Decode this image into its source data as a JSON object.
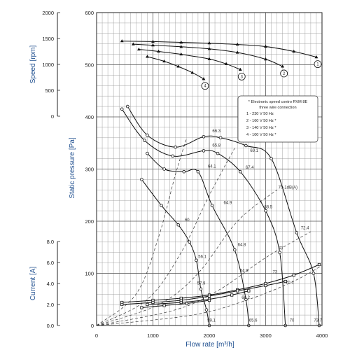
{
  "chart_data": {
    "type": "line",
    "axes": {
      "x": {
        "label": "Flow rate [m³/h]",
        "range": [
          0,
          4000
        ],
        "ticks": [
          0,
          1000,
          2000,
          3000,
          4000
        ]
      },
      "pressure": {
        "label": "Static pressure [Pa]",
        "range": [
          0,
          600
        ],
        "ticks": [
          0,
          100,
          200,
          300,
          400,
          500,
          600
        ]
      },
      "speed": {
        "label": "Speed [rpm]",
        "range": [
          0,
          2000
        ],
        "ticks": [
          0,
          500,
          1000,
          1500,
          2000
        ]
      },
      "current": {
        "label": "Current [A]",
        "range": [
          0,
          8
        ],
        "ticks": [
          "0.0",
          "2.0",
          "4.0",
          "6.0",
          "8.0"
        ]
      }
    },
    "grid": true,
    "legend": {
      "placement": "right",
      "title_lines": [
        "* Electronic speed contro RVM 8E",
        "three wire connection"
      ],
      "items": [
        "1 - 230 V 50 Hz",
        "2 - 160 V 50 Hz *",
        "3 - 140 V 50 Hz *",
        "4 - 100 V 50 Hz *"
      ]
    },
    "speed_series": [
      {
        "name": "1",
        "points": [
          [
            450,
            1450
          ],
          [
            1000,
            1440
          ],
          [
            1500,
            1425
          ],
          [
            2000,
            1410
          ],
          [
            2500,
            1385
          ],
          [
            3000,
            1345
          ],
          [
            3500,
            1250
          ],
          [
            3900,
            1140
          ]
        ]
      },
      {
        "name": "2",
        "points": [
          [
            650,
            1390
          ],
          [
            1000,
            1370
          ],
          [
            1500,
            1340
          ],
          [
            2000,
            1300
          ],
          [
            2500,
            1230
          ],
          [
            3000,
            1100
          ],
          [
            3300,
            960
          ]
        ]
      },
      {
        "name": "3",
        "points": [
          [
            750,
            1290
          ],
          [
            1100,
            1250
          ],
          [
            1500,
            1195
          ],
          [
            2000,
            1105
          ],
          [
            2300,
            1010
          ],
          [
            2550,
            900
          ]
        ]
      },
      {
        "name": "4",
        "points": [
          [
            900,
            1150
          ],
          [
            1200,
            1060
          ],
          [
            1450,
            960
          ],
          [
            1700,
            840
          ],
          [
            1900,
            720
          ]
        ]
      }
    ],
    "pressure_series": [
      {
        "name": "1",
        "points": [
          [
            550,
            420
          ],
          [
            900,
            365
          ],
          [
            1400,
            342
          ],
          [
            1900,
            362
          ],
          [
            2200,
            360
          ],
          [
            2650,
            345
          ],
          [
            3100,
            320
          ],
          [
            3550,
            178
          ],
          [
            3850,
            100
          ],
          [
            3950,
            0
          ]
        ]
      },
      {
        "name": "2",
        "points": [
          [
            450,
            415
          ],
          [
            850,
            355
          ],
          [
            1350,
            325
          ],
          [
            1900,
            335
          ],
          [
            2150,
            330
          ],
          [
            2550,
            295
          ],
          [
            3000,
            220
          ],
          [
            3250,
            140
          ],
          [
            3350,
            0
          ]
        ]
      },
      {
        "name": "3",
        "points": [
          [
            900,
            330
          ],
          [
            1200,
            300
          ],
          [
            1550,
            295
          ],
          [
            1800,
            295
          ],
          [
            2050,
            230
          ],
          [
            2450,
            145
          ],
          [
            2650,
            50
          ],
          [
            2700,
            0
          ]
        ]
      },
      {
        "name": "4",
        "points": [
          [
            800,
            280
          ],
          [
            1150,
            230
          ],
          [
            1450,
            193
          ],
          [
            1650,
            160
          ],
          [
            1770,
            125
          ],
          [
            1850,
            70
          ],
          [
            1950,
            30
          ],
          [
            2000,
            0
          ]
        ]
      }
    ],
    "current_series": [
      {
        "name": "1",
        "points": [
          [
            450,
            2.2
          ],
          [
            1000,
            2.4
          ],
          [
            1500,
            2.6
          ],
          [
            2000,
            2.9
          ],
          [
            2500,
            3.4
          ],
          [
            3000,
            4.0
          ],
          [
            3500,
            4.8
          ],
          [
            3950,
            5.8
          ]
        ]
      },
      {
        "name": "2",
        "points": [
          [
            450,
            2.0
          ],
          [
            1000,
            2.2
          ],
          [
            1500,
            2.4
          ],
          [
            2000,
            2.8
          ],
          [
            2500,
            3.3
          ],
          [
            3000,
            3.8
          ],
          [
            3350,
            4.2
          ]
        ]
      },
      {
        "name": "3",
        "points": [
          [
            900,
            2.0
          ],
          [
            1500,
            2.2
          ],
          [
            2000,
            2.5
          ],
          [
            2400,
            2.9
          ],
          [
            2700,
            3.3
          ]
        ]
      },
      {
        "name": "4",
        "points": [
          [
            800,
            1.7
          ],
          [
            1200,
            1.9
          ],
          [
            1600,
            2.1
          ],
          [
            2000,
            2.4
          ]
        ]
      }
    ],
    "sound_level_labels": [
      {
        "text": "66.3",
        "x": 2030,
        "y": 368
      },
      {
        "text": "65.8",
        "x": 2030,
        "y": 340
      },
      {
        "text": "64.1",
        "x": 1950,
        "y": 300
      },
      {
        "text": "60",
        "x": 1540,
        "y": 197
      },
      {
        "text": "56.1",
        "x": 1780,
        "y": 127
      },
      {
        "text": "57.9",
        "x": 1760,
        "y": 76
      },
      {
        "text": "59.1",
        "x": 1940,
        "y": 5
      },
      {
        "text": "69.1",
        "x": 2700,
        "y": 330
      },
      {
        "text": "67.4",
        "x": 2620,
        "y": 298
      },
      {
        "text": "64.9",
        "x": 2230,
        "y": 230
      },
      {
        "text": "64.8",
        "x": 2480,
        "y": 150
      },
      {
        "text": "64.9",
        "x": 2520,
        "y": 100
      },
      {
        "text": "66.2",
        "x": 2550,
        "y": 48
      },
      {
        "text": "65.6",
        "x": 2680,
        "y": 5
      },
      {
        "text": "70-1dB(A)",
        "x": 3200,
        "y": 260
      },
      {
        "text": "68.5",
        "x": 2950,
        "y": 222
      },
      {
        "text": "72.4",
        "x": 3600,
        "y": 182
      },
      {
        "text": "70",
        "x": 3200,
        "y": 143
      },
      {
        "text": "73",
        "x": 3100,
        "y": 97
      },
      {
        "text": "70.1",
        "x": 3330,
        "y": 77
      },
      {
        "text": "70",
        "x": 3400,
        "y": 5
      },
      {
        "text": "73.7",
        "x": 3830,
        "y": 5
      }
    ],
    "system_curves": [
      [
        [
          0,
          0
        ],
        [
          700,
          60
        ],
        [
          1100,
          170
        ],
        [
          1400,
          290
        ],
        [
          1600,
          360
        ]
      ],
      [
        [
          0,
          0
        ],
        [
          900,
          50
        ],
        [
          1500,
          140
        ],
        [
          2000,
          250
        ],
        [
          2450,
          340
        ]
      ],
      [
        [
          0,
          0
        ],
        [
          1100,
          40
        ],
        [
          1800,
          100
        ],
        [
          2500,
          200
        ],
        [
          3200,
          260
        ]
      ],
      [
        [
          0,
          0
        ],
        [
          1400,
          30
        ],
        [
          2200,
          70
        ],
        [
          3000,
          130
        ],
        [
          3800,
          180
        ]
      ],
      [
        [
          0,
          0
        ],
        [
          1700,
          20
        ],
        [
          2700,
          50
        ],
        [
          3500,
          85
        ],
        [
          4000,
          115
        ]
      ]
    ]
  }
}
